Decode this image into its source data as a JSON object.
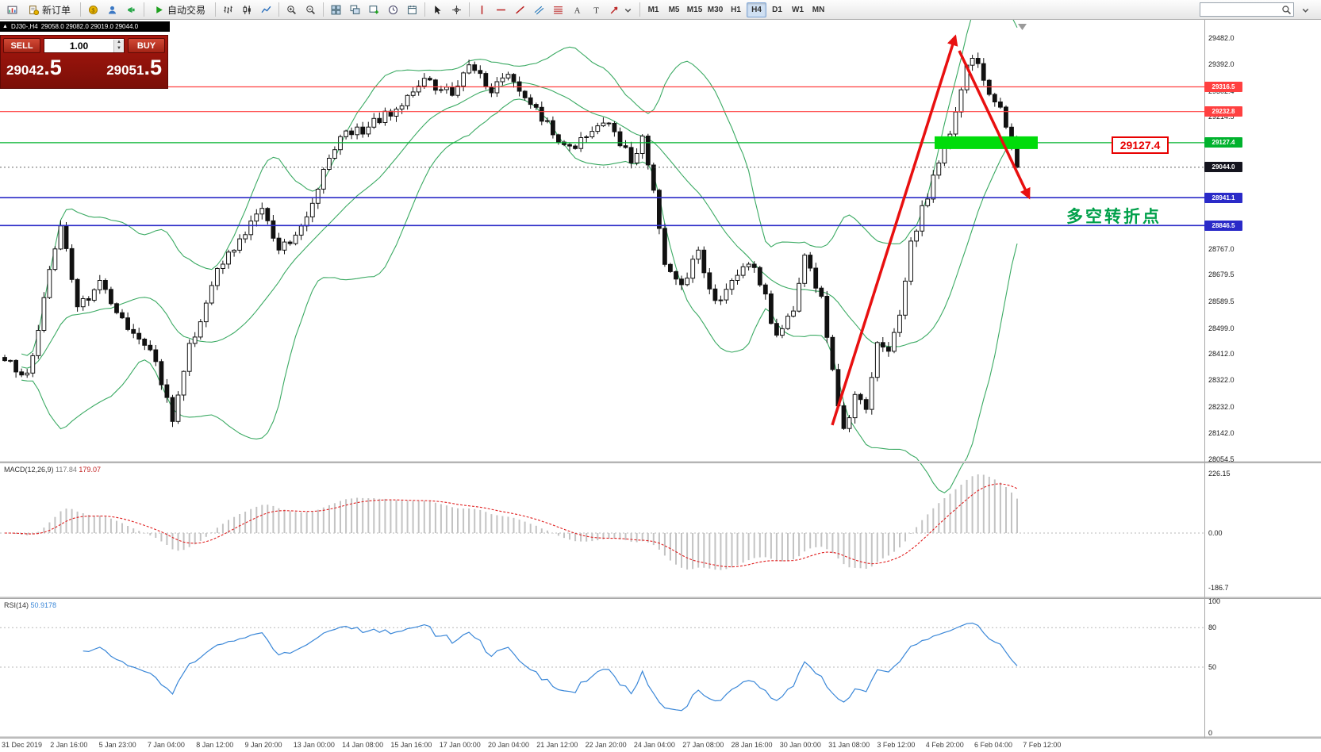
{
  "toolbar": {
    "new_order": "新订单",
    "auto_trading": "自动交易",
    "timeframes": [
      "M1",
      "M5",
      "M15",
      "M30",
      "H1",
      "H4",
      "D1",
      "W1",
      "MN"
    ],
    "active_timeframe": "H4",
    "search_placeholder": ""
  },
  "symbol_bar": {
    "symbol": "DJ30-,H4",
    "ohlc": "29058.0 29082.0 29019.0 29044.0"
  },
  "trade_panel": {
    "sell_label": "SELL",
    "buy_label": "BUY",
    "volume": "1.00",
    "sell_price_int": "29042",
    "sell_price_frac": ".5",
    "buy_price_int": "29051",
    "buy_price_frac": ".5"
  },
  "annotations": {
    "turning_point": "多空转折点",
    "price_callout": "29127.4",
    "colors": {
      "annotation_green": "#00A04A",
      "callout_red": "#E80000",
      "zone_green": "#00DC0A",
      "arrow_red": "#E81010"
    }
  },
  "price_axis": {
    "labels": [
      "29482.0",
      "29392.0",
      "29302.4",
      "29214.5",
      "28767.0",
      "28679.5",
      "28589.5",
      "28499.0",
      "28412.0",
      "28322.0",
      "28232.0",
      "28142.0",
      "28054.5"
    ],
    "tags": [
      {
        "value": "29316.5",
        "color": "#FF4040",
        "role": "resistance"
      },
      {
        "value": "29232.8",
        "color": "#FF4040",
        "role": "resistance"
      },
      {
        "value": "29127.4",
        "color": "#00B22D",
        "role": "pivot"
      },
      {
        "value": "29044.0",
        "color": "#14141E",
        "role": "last-price"
      },
      {
        "value": "28941.1",
        "color": "#2A2AC8",
        "role": "support"
      },
      {
        "value": "28846.5",
        "color": "#2A2AC8",
        "role": "support"
      }
    ]
  },
  "macd_panel": {
    "label": "MACD(12,26,9)",
    "main_value": "117.84",
    "signal_value": "179.07",
    "scale": [
      "226.15",
      "0.00",
      "-186.7"
    ]
  },
  "rsi_panel": {
    "label": "RSI(14)",
    "value": "50.9178",
    "scale": [
      "100",
      "80",
      "50",
      "0"
    ]
  },
  "time_axis": [
    "31 Dec 2019",
    "2 Jan 16:00",
    "5 Jan 23:00",
    "7 Jan 04:00",
    "8 Jan 12:00",
    "9 Jan 20:00",
    "13 Jan 00:00",
    "14 Jan 08:00",
    "15 Jan 16:00",
    "17 Jan 00:00",
    "20 Jan 04:00",
    "21 Jan 12:00",
    "22 Jan 20:00",
    "24 Jan 04:00",
    "27 Jan 08:00",
    "28 Jan 16:00",
    "30 Jan 00:00",
    "31 Jan 08:00",
    "3 Feb 12:00",
    "4 Feb 20:00",
    "6 Feb 04:00",
    "7 Feb 12:00"
  ],
  "chart_data": {
    "type": "candlestick",
    "symbol": "DJ30-",
    "timeframe": "H4",
    "title": "DJ30-,H4",
    "ohlc_current": {
      "open": 29058.0,
      "high": 29082.0,
      "low": 29019.0,
      "close": 29044.0
    },
    "bid": 29042.5,
    "ask": 29051.5,
    "y_range": [
      28054.5,
      29543.0
    ],
    "levels": {
      "resistance": [
        29316.5,
        29232.8
      ],
      "pivot_zone": 29127.4,
      "last_price": 29044.0,
      "support": [
        28941.1,
        28846.5
      ]
    },
    "overlays": [
      "Bollinger Bands (green)",
      "red impulse arrow up 31-Jan-low to 6-Feb-high",
      "red correction arrow down to 28940 area",
      "green pivot zone rectangle at 29127.4"
    ],
    "indicators": [
      {
        "name": "MACD(12,26,9)",
        "values": [
          117.84,
          179.07
        ],
        "scale_range": [
          -186.7,
          226.15
        ]
      },
      {
        "name": "RSI(14)",
        "value": 50.9178,
        "scale": [
          0,
          50,
          80,
          100
        ]
      }
    ],
    "candle_count": 182,
    "price_path_anchors": [
      [
        0,
        28400
      ],
      [
        4,
        28330
      ],
      [
        10,
        28860
      ],
      [
        13,
        28560
      ],
      [
        17,
        28660
      ],
      [
        22,
        28500
      ],
      [
        26,
        28430
      ],
      [
        30,
        28200
      ],
      [
        33,
        28430
      ],
      [
        38,
        28700
      ],
      [
        43,
        28830
      ],
      [
        46,
        28900
      ],
      [
        49,
        28770
      ],
      [
        53,
        28830
      ],
      [
        57,
        29020
      ],
      [
        60,
        29150
      ],
      [
        65,
        29180
      ],
      [
        70,
        29240
      ],
      [
        75,
        29330
      ],
      [
        80,
        29300
      ],
      [
        83,
        29390
      ],
      [
        87,
        29310
      ],
      [
        90,
        29350
      ],
      [
        94,
        29260
      ],
      [
        98,
        29160
      ],
      [
        101,
        29100
      ],
      [
        104,
        29160
      ],
      [
        107,
        29210
      ],
      [
        110,
        29120
      ],
      [
        112,
        29070
      ],
      [
        114,
        29140
      ],
      [
        116,
        28950
      ],
      [
        118,
        28700
      ],
      [
        121,
        28640
      ],
      [
        124,
        28760
      ],
      [
        127,
        28580
      ],
      [
        130,
        28650
      ],
      [
        133,
        28730
      ],
      [
        136,
        28600
      ],
      [
        138,
        28460
      ],
      [
        141,
        28560
      ],
      [
        143,
        28750
      ],
      [
        146,
        28600
      ],
      [
        148,
        28350
      ],
      [
        150,
        28150
      ],
      [
        152,
        28260
      ],
      [
        154,
        28220
      ],
      [
        156,
        28440
      ],
      [
        158,
        28420
      ],
      [
        160,
        28560
      ],
      [
        162,
        28780
      ],
      [
        164,
        28900
      ],
      [
        166,
        29000
      ],
      [
        168,
        29100
      ],
      [
        170,
        29220
      ],
      [
        172,
        29380
      ],
      [
        173,
        29430
      ],
      [
        175,
        29330
      ],
      [
        177,
        29280
      ],
      [
        179,
        29180
      ],
      [
        181,
        29044
      ]
    ]
  }
}
